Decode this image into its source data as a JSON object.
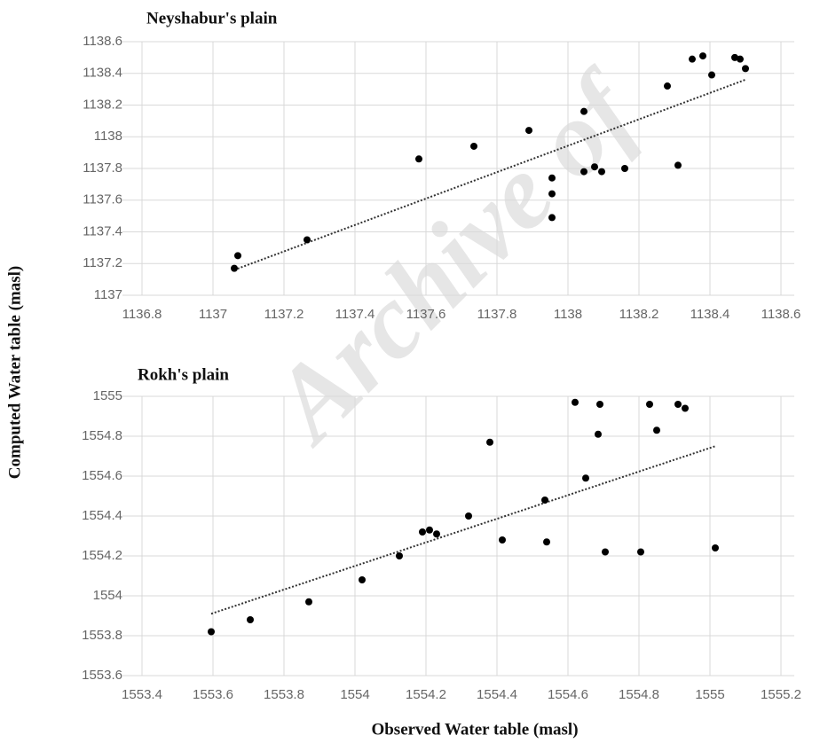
{
  "watermark": "Archive of",
  "chart_data": [
    {
      "type": "scatter",
      "title": "Neyshabur's  plain",
      "ylabel": "Computed Water table (masl)",
      "color": "#000000",
      "grid": true,
      "xlim": [
        1136.8,
        1138.6
      ],
      "xticks": [
        1136.8,
        1137,
        1137.2,
        1137.4,
        1137.6,
        1137.8,
        1138,
        1138.2,
        1138.4,
        1138.6
      ],
      "ylim": [
        1137,
        1138.6
      ],
      "yticks": [
        1137,
        1137.2,
        1137.4,
        1137.6,
        1137.8,
        1138,
        1138.2,
        1138.4,
        1138.6
      ],
      "series": [
        {
          "x": [
            1137.06,
            1137.07,
            1137.265,
            1137.58,
            1137.735,
            1137.89,
            1137.955,
            1137.955,
            1137.955,
            1138.045,
            1138.045,
            1138.075,
            1138.095,
            1138.16,
            1138.28,
            1138.31,
            1138.35,
            1138.38,
            1138.405,
            1138.47,
            1138.485,
            1138.5
          ],
          "values": [
            1137.17,
            1137.25,
            1137.35,
            1137.86,
            1137.94,
            1138.04,
            1137.74,
            1137.64,
            1137.49,
            1138.16,
            1137.78,
            1137.81,
            1137.78,
            1137.8,
            1138.32,
            1137.82,
            1138.49,
            1138.51,
            1138.39,
            1138.5,
            1138.49,
            1138.43
          ]
        }
      ],
      "trendline": {
        "x": [
          1137.06,
          1138.5
        ],
        "y": [
          1137.16,
          1138.36
        ]
      }
    },
    {
      "type": "scatter",
      "title": "Rokh's plain",
      "xlabel": "Observed Water table (masl)",
      "color": "#000000",
      "grid": true,
      "xlim": [
        1553.4,
        1555.2
      ],
      "xticks": [
        1553.4,
        1553.6,
        1553.8,
        1554,
        1554.2,
        1554.4,
        1554.6,
        1554.8,
        1555,
        1555.2
      ],
      "ylim": [
        1553.6,
        1555
      ],
      "yticks": [
        1553.6,
        1553.8,
        1554,
        1554.2,
        1554.4,
        1554.6,
        1554.8,
        1555
      ],
      "series": [
        {
          "x": [
            1553.595,
            1553.705,
            1553.87,
            1554.02,
            1554.125,
            1554.19,
            1554.21,
            1554.23,
            1554.32,
            1554.38,
            1554.415,
            1554.535,
            1554.54,
            1554.62,
            1554.69,
            1554.685,
            1554.65,
            1554.705,
            1554.83,
            1554.85,
            1554.805,
            1554.91,
            1554.93,
            1555.015
          ],
          "values": [
            1553.82,
            1553.88,
            1553.97,
            1554.08,
            1554.2,
            1554.32,
            1554.33,
            1554.31,
            1554.4,
            1554.77,
            1554.28,
            1554.48,
            1554.27,
            1554.97,
            1554.96,
            1554.81,
            1554.59,
            1554.22,
            1554.96,
            1554.83,
            1554.22,
            1554.96,
            1554.94,
            1554.24
          ]
        }
      ],
      "trendline": {
        "x": [
          1553.595,
          1555.015
        ],
        "y": [
          1553.91,
          1554.75
        ]
      }
    }
  ]
}
